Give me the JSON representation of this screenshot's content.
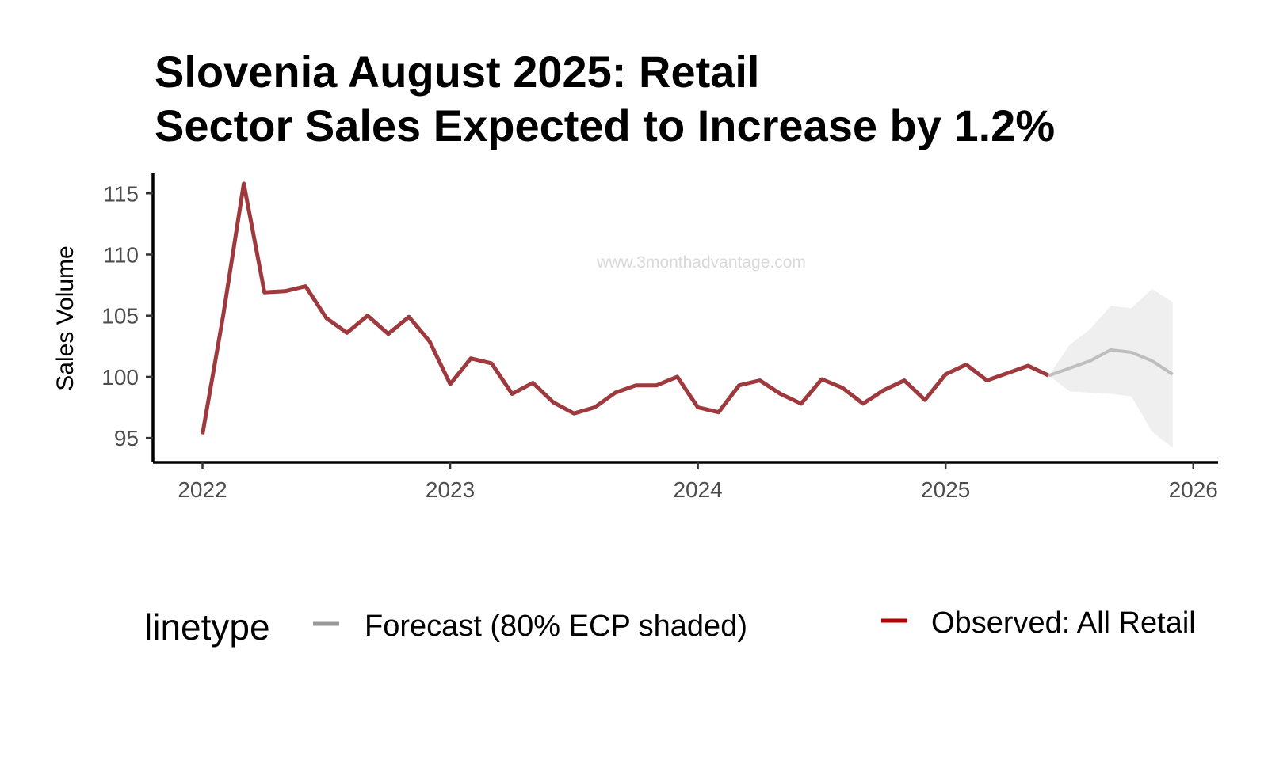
{
  "chart_data": {
    "type": "line",
    "title_lines": [
      "Slovenia August 2025: Retail",
      "Sector Sales Expected to Increase by 1.2%"
    ],
    "xlabel": "",
    "ylabel": "Sales Volume",
    "watermark": "www.3monthadvantage.com",
    "xlim": [
      2021.8,
      2026.1
    ],
    "ylim": [
      93,
      116.7
    ],
    "x_ticks": [
      2022,
      2023,
      2024,
      2025,
      2026
    ],
    "x_tick_labels": [
      "2022",
      "2023",
      "2024",
      "2025",
      "2026"
    ],
    "y_ticks": [
      95,
      100,
      105,
      110,
      115
    ],
    "y_tick_labels": [
      "95",
      "100",
      "105",
      "110",
      "115"
    ],
    "grid": false,
    "legend": {
      "title": "linetype",
      "position": "bottom",
      "entries": [
        {
          "label": "Forecast (80% ECP shaded)",
          "color": "#999999"
        },
        {
          "label": "Observed: All Retail",
          "color": "#b30000"
        }
      ]
    },
    "series": [
      {
        "name": "Observed: All Retail",
        "color": "#9e3a3d",
        "start": "2022-01",
        "values": [
          95.3,
          105.0,
          115.8,
          106.9,
          107.0,
          107.4,
          104.8,
          103.6,
          105.0,
          103.5,
          104.9,
          102.9,
          99.4,
          101.5,
          101.1,
          98.6,
          99.5,
          97.9,
          97.0,
          97.5,
          98.7,
          99.3,
          99.3,
          100.0,
          97.5,
          97.1,
          99.3,
          99.7,
          98.6,
          97.8,
          99.8,
          99.1,
          97.8,
          98.9,
          99.7,
          98.1,
          100.2,
          101.0,
          99.7,
          100.3,
          100.9,
          100.1
        ]
      },
      {
        "name": "Forecast (80% ECP shaded)",
        "color": "#bebebe",
        "start": "2025-06",
        "values": [
          100.1,
          100.7,
          101.3,
          102.2,
          102.0,
          101.3,
          100.2
        ],
        "lower": [
          100.1,
          98.8,
          98.7,
          98.6,
          98.4,
          95.5,
          94.2
        ],
        "upper": [
          100.1,
          102.6,
          103.9,
          105.8,
          105.6,
          107.2,
          106.1
        ],
        "band_color": "#efefef"
      }
    ]
  }
}
